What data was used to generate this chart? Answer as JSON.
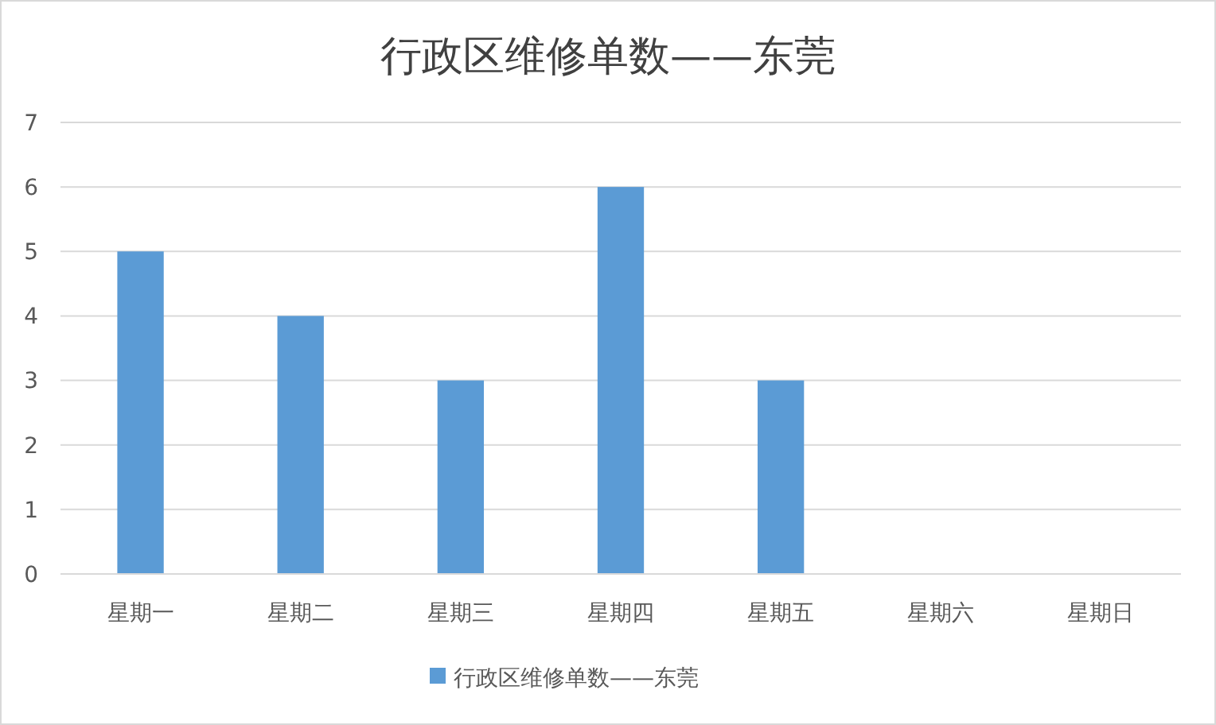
{
  "chart_data": {
    "type": "bar",
    "title": "行政区维修单数——东莞",
    "categories": [
      "星期一",
      "星期二",
      "星期三",
      "星期四",
      "星期五",
      "星期六",
      "星期日"
    ],
    "series": [
      {
        "name": "行政区维修单数——东莞",
        "color": "#5b9bd5",
        "values": [
          5,
          4,
          3,
          6,
          3,
          0,
          0
        ]
      }
    ],
    "ylim": [
      0,
      7
    ],
    "yticks": [
      0,
      1,
      2,
      3,
      4,
      5,
      6,
      7
    ],
    "grid": "y",
    "legend": "bottom"
  }
}
